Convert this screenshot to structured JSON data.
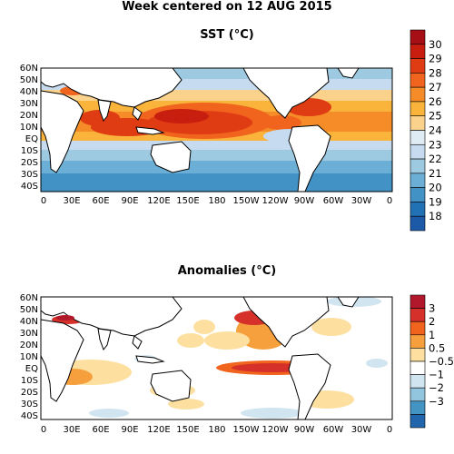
{
  "figure_title": "Week centered on 12 AUG 2015",
  "panels": [
    {
      "id": "sst",
      "title": "SST (°C)",
      "lat_labels": [
        "60N",
        "50N",
        "40N",
        "30N",
        "20N",
        "10N",
        "EQ",
        "10S",
        "20S",
        "30S",
        "40S"
      ],
      "lon_labels": [
        "0",
        "30E",
        "60E",
        "90E",
        "120E",
        "150E",
        "180",
        "150W",
        "120W",
        "90W",
        "60W",
        "30W",
        "0"
      ],
      "colorbar": {
        "labels": [
          "30",
          "29",
          "28",
          "27",
          "26",
          "25",
          "24",
          "23",
          "22",
          "21",
          "20",
          "19",
          "18"
        ],
        "colors": [
          "#a50f15",
          "#c81e0f",
          "#e03c14",
          "#f0641e",
          "#f58c28",
          "#fab43c",
          "#fbd28c",
          "#e0ecf4",
          "#c6dbef",
          "#9ecae1",
          "#6baed6",
          "#4292c6",
          "#2171b5",
          "#1c5aa8"
        ]
      }
    },
    {
      "id": "anomalies",
      "title": "Anomalies (°C)",
      "lat_labels": [
        "60N",
        "50N",
        "40N",
        "30N",
        "20N",
        "10N",
        "EQ",
        "10S",
        "20S",
        "30S",
        "40S"
      ],
      "lon_labels": [
        "0",
        "30E",
        "60E",
        "90E",
        "120E",
        "150E",
        "180",
        "150W",
        "120W",
        "90W",
        "60W",
        "30W",
        "0"
      ],
      "colorbar": {
        "labels": [
          "3",
          "2",
          "1",
          "0.5",
          "−0.5",
          "−1",
          "−2",
          "−3"
        ],
        "colors": [
          "#b2182b",
          "#d6302a",
          "#f0641e",
          "#f5a03c",
          "#fde0a0",
          "#ffffff",
          "#d1e5f0",
          "#92c5de",
          "#4393c3",
          "#2166ac"
        ]
      }
    }
  ]
}
